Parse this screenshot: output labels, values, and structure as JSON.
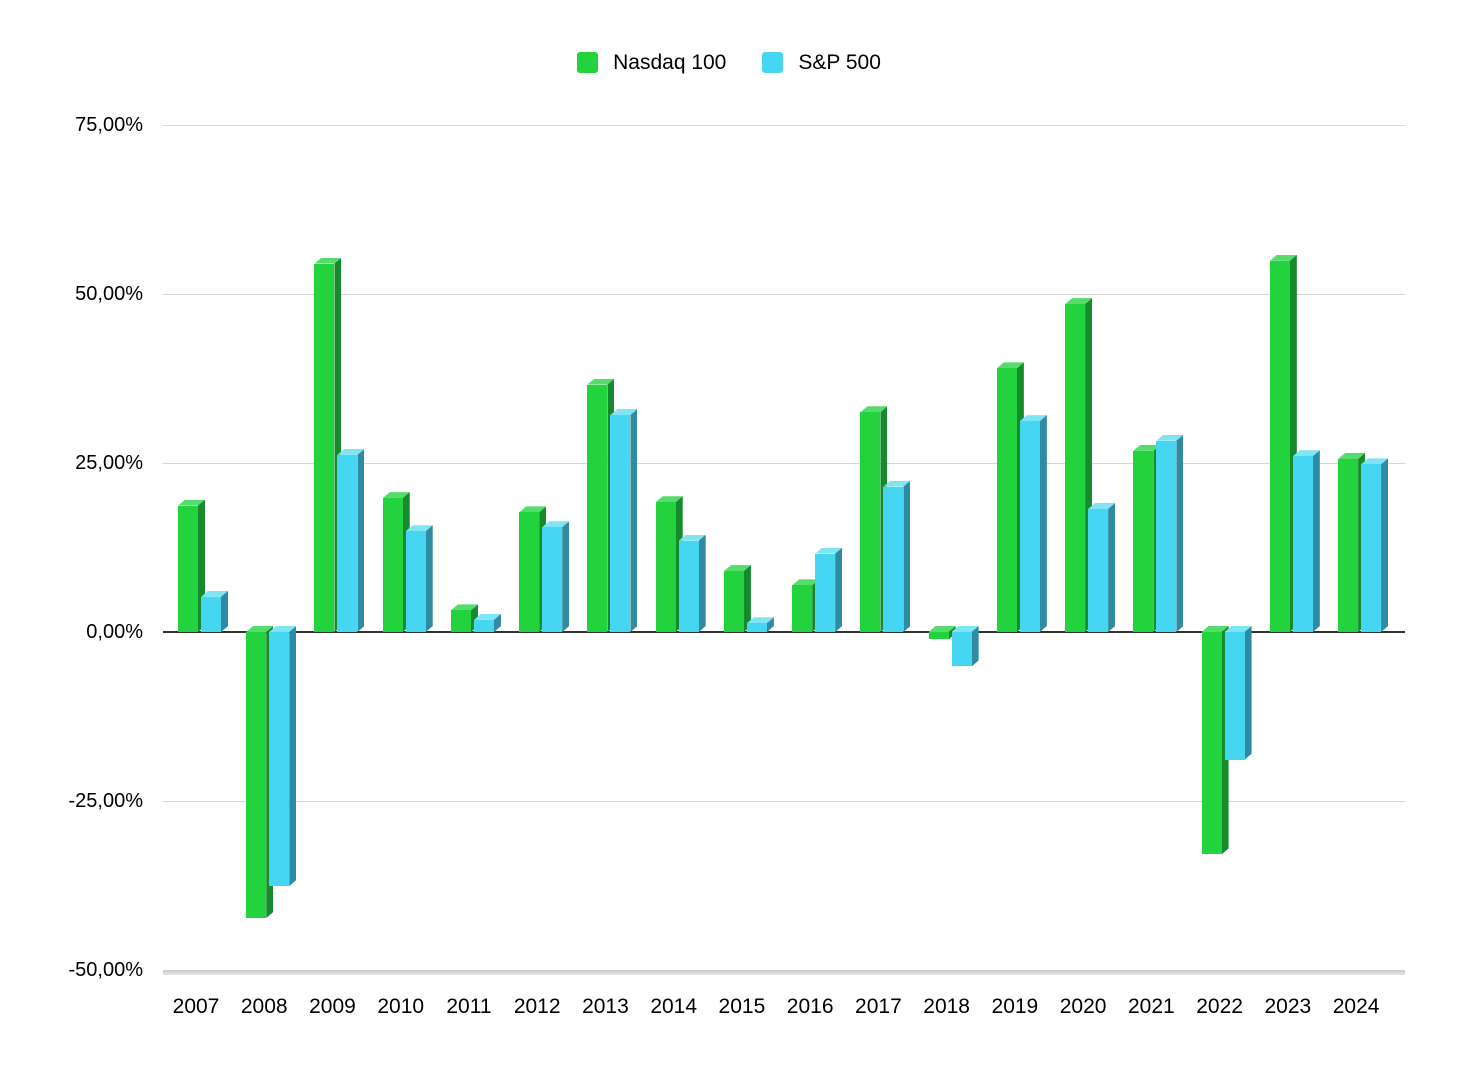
{
  "legend": {
    "items": [
      {
        "label": "Nasdaq 100",
        "color": "#22d33e"
      },
      {
        "label": "S&P 500",
        "color": "#45d7f2"
      }
    ]
  },
  "chart_data": {
    "type": "bar",
    "title": "",
    "xlabel": "",
    "ylabel": "",
    "number_format": "european-percent",
    "grid": "horizontal",
    "legend_position": "top",
    "ylim": [
      -50,
      75
    ],
    "yticks": [
      {
        "value": 75,
        "label": "75,00%"
      },
      {
        "value": 50,
        "label": "50,00%"
      },
      {
        "value": 25,
        "label": "25,00%"
      },
      {
        "value": 0,
        "label": "0,00%"
      },
      {
        "value": -25,
        "label": "-25,00%"
      },
      {
        "value": -50,
        "label": "-50,00%"
      }
    ],
    "categories": [
      "2007",
      "2008",
      "2009",
      "2010",
      "2011",
      "2012",
      "2013",
      "2014",
      "2015",
      "2016",
      "2017",
      "2018",
      "2019",
      "2020",
      "2021",
      "2022",
      "2023",
      "2024"
    ],
    "series": [
      {
        "name": "Nasdaq 100",
        "color": "#22d33e",
        "side_color": "#168b2d",
        "top_color": "#55dc6c",
        "values": [
          18.7,
          -42.3,
          54.5,
          19.8,
          3.2,
          17.7,
          36.6,
          19.2,
          9.0,
          6.9,
          32.5,
          -1.1,
          39.0,
          48.5,
          26.8,
          -32.9,
          54.9,
          25.6
        ]
      },
      {
        "name": "S&P 500",
        "color": "#45d7f2",
        "side_color": "#2e8ba1",
        "top_color": "#7fe5f4",
        "values": [
          5.2,
          -37.6,
          26.2,
          14.9,
          1.8,
          15.5,
          32.1,
          13.5,
          1.3,
          11.6,
          21.5,
          -5.1,
          31.2,
          18.2,
          28.3,
          -18.9,
          26.0,
          24.8
        ]
      }
    ]
  }
}
